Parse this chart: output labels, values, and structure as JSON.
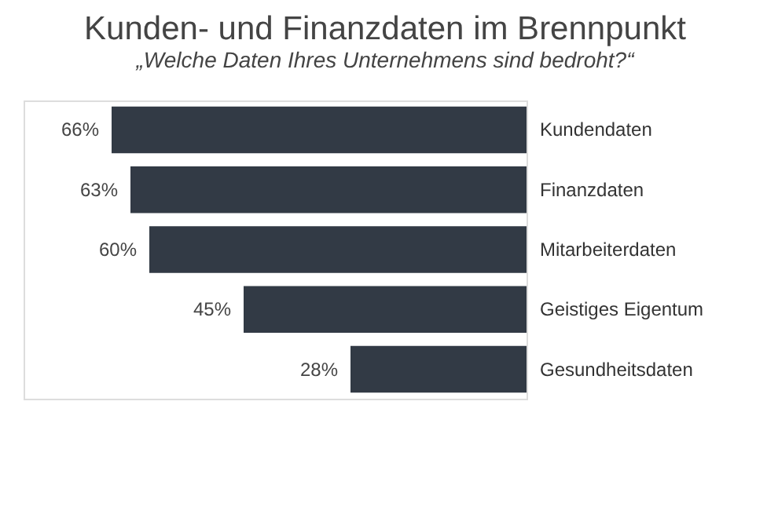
{
  "chart_data": {
    "type": "bar",
    "orientation": "horizontal",
    "title": "Kunden- und Finanzdaten im Brennpunkt",
    "subtitle": "„Welche Daten Ihres Unternehmens sind bedroht?“",
    "categories": [
      "Kundendaten",
      "Finanzdaten",
      "Mitarbeiterdaten",
      "Geistiges Eigentum",
      "Gesundheitsdaten"
    ],
    "values": [
      66,
      63,
      60,
      45,
      28
    ],
    "value_labels": [
      "66%",
      "63%",
      "60%",
      "45%",
      "28%"
    ],
    "color": "#323a45",
    "xlim": [
      80,
      0
    ],
    "tick_labels": "y"
  }
}
